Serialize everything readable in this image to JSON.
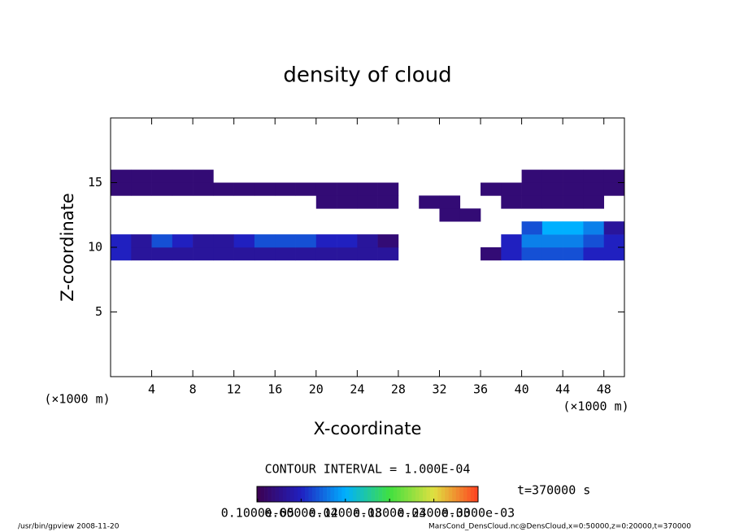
{
  "chart_data": {
    "type": "heatmap",
    "title": "density of cloud",
    "x_label": "X-coordinate",
    "y_label": "Z-coordinate",
    "x_unit": "(×1000 m)",
    "y_unit": "(×1000 m)",
    "x": [
      0,
      2,
      4,
      6,
      8,
      10,
      12,
      14,
      16,
      18,
      20,
      22,
      24,
      26,
      28,
      30,
      32,
      34,
      36,
      38,
      40,
      42,
      44,
      46,
      48,
      50
    ],
    "z": [
      9,
      10,
      11,
      12,
      13,
      14,
      15,
      16
    ],
    "values": [
      [
        6e-05,
        4e-05,
        4e-05,
        4e-05,
        4e-05,
        4e-05,
        4e-05,
        4e-05,
        4e-05,
        4e-05,
        4e-05,
        4e-05,
        4e-05,
        4e-05,
        null,
        null,
        null,
        null,
        2e-05,
        6e-05,
        8e-05,
        8e-05,
        8e-05,
        6e-05,
        6e-05
      ],
      [
        6e-05,
        4e-05,
        8e-05,
        6e-05,
        4e-05,
        4e-05,
        6e-05,
        8e-05,
        8e-05,
        8e-05,
        6e-05,
        6e-05,
        4e-05,
        2e-05,
        null,
        null,
        null,
        null,
        null,
        6e-05,
        0.0001,
        0.0001,
        0.0001,
        8e-05,
        6e-05
      ],
      [
        null,
        null,
        null,
        null,
        null,
        null,
        null,
        null,
        null,
        null,
        null,
        null,
        null,
        null,
        null,
        null,
        null,
        null,
        null,
        null,
        8e-05,
        0.00012,
        0.00012,
        0.0001,
        4e-05
      ],
      [
        null,
        null,
        null,
        null,
        null,
        null,
        null,
        null,
        null,
        null,
        null,
        null,
        null,
        null,
        null,
        null,
        2e-05,
        2e-05,
        null,
        null,
        null,
        null,
        null,
        null,
        null
      ],
      [
        null,
        null,
        null,
        null,
        null,
        null,
        null,
        null,
        null,
        null,
        2e-05,
        2e-05,
        2e-05,
        2e-05,
        null,
        2e-05,
        2e-05,
        null,
        null,
        2e-05,
        2e-05,
        2e-05,
        2e-05,
        2e-05,
        null
      ],
      [
        2e-05,
        2e-05,
        2e-05,
        2e-05,
        2e-05,
        2e-05,
        2e-05,
        2e-05,
        2e-05,
        2e-05,
        2e-05,
        2e-05,
        2e-05,
        2e-05,
        null,
        null,
        null,
        null,
        2e-05,
        2e-05,
        2e-05,
        2e-05,
        2e-05,
        2e-05,
        2e-05
      ],
      [
        2e-05,
        2e-05,
        2e-05,
        2e-05,
        2e-05,
        null,
        null,
        null,
        null,
        null,
        null,
        null,
        null,
        null,
        null,
        null,
        null,
        null,
        null,
        null,
        2e-05,
        2e-05,
        2e-05,
        2e-05,
        2e-05
      ]
    ],
    "xlim": [
      0,
      50
    ],
    "ylim": [
      0,
      20
    ],
    "xticks": [
      4,
      8,
      12,
      16,
      20,
      24,
      28,
      32,
      36,
      40,
      44,
      48
    ],
    "yticks": [
      5,
      10,
      15
    ],
    "colormap": [
      "#3c0050",
      "#2020c0",
      "#00b0ff",
      "#40e040",
      "#e0e040",
      "#ff4020"
    ],
    "clim": [
      0,
      0.0003
    ],
    "colorbar_ticks": [
      {
        "value": 1e-06,
        "label": "0.1000e-05"
      },
      {
        "value": 6e-05,
        "label": "0.6000e-04"
      },
      {
        "value": 0.00012,
        "label": "0.1200e-03"
      },
      {
        "value": 0.00018,
        "label": "0.1800e-03"
      },
      {
        "value": 0.00024,
        "label": "0.2400e-03"
      },
      {
        "value": 0.0003,
        "label": "0.3000e-03"
      }
    ],
    "contour_interval": "CONTOUR INTERVAL = 1.000E-04",
    "time": "t=370000 s",
    "footer_left": "/usr/bin/gpview  2008-11-20",
    "footer_right": "MarsCond_DensCloud.nc@DensCloud,x=0:50000,z=0:20000,t=370000"
  }
}
